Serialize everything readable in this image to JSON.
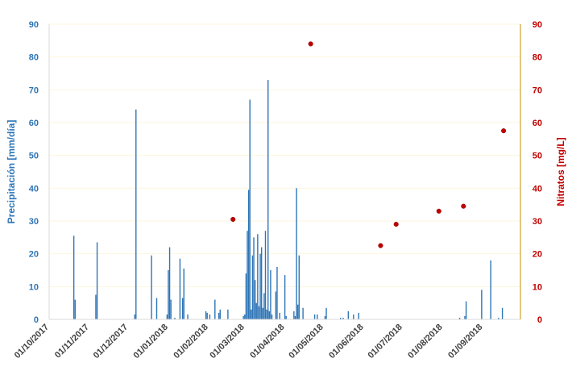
{
  "chart_data": {
    "type": "bar",
    "title": "",
    "xlabel": "",
    "ylabel_left": "Precipitación [mm/día]",
    "ylabel_right": "Nitratos [mg/L]",
    "ylim_left": [
      0,
      90
    ],
    "ylim_right": [
      0,
      90
    ],
    "y_ticks": [
      "0",
      "10",
      "20",
      "30",
      "40",
      "50",
      "60",
      "70",
      "80",
      "90"
    ],
    "x_range": [
      "2017-10-01",
      "2018-09-30"
    ],
    "x_tick_labels": [
      "01/10/2017",
      "01/11/2017",
      "01/12/2017",
      "01/01/2018",
      "01/02/2018",
      "01/03/2018",
      "01/04/2018",
      "01/05/2018",
      "01/06/2018",
      "01/07/2018",
      "01/08/2018",
      "01/09/2018"
    ],
    "x_tick_dates": [
      "2017-10-01",
      "2017-11-01",
      "2017-12-01",
      "2018-01-01",
      "2018-02-01",
      "2018-03-01",
      "2018-04-01",
      "2018-05-01",
      "2018-06-01",
      "2018-07-01",
      "2018-08-01",
      "2018-09-01"
    ],
    "grid": "horizontal",
    "colors": {
      "bars": "#2e75b6",
      "points": "#c00000",
      "axis_left": "#2e75b6",
      "axis_right": "#c00000",
      "grid": "#fdf6dc"
    },
    "series": [
      {
        "axis": "left",
        "type": "bar",
        "points": [
          {
            "x": "2017-10-20",
            "y": 25.5
          },
          {
            "x": "2017-10-21",
            "y": 6
          },
          {
            "x": "2017-11-06",
            "y": 7.5
          },
          {
            "x": "2017-11-07",
            "y": 23.5
          },
          {
            "x": "2017-12-06",
            "y": 1.5
          },
          {
            "x": "2017-12-07",
            "y": 64
          },
          {
            "x": "2017-12-19",
            "y": 19.5
          },
          {
            "x": "2017-12-23",
            "y": 6.5
          },
          {
            "x": "2017-12-31",
            "y": 1.5
          },
          {
            "x": "2018-01-01",
            "y": 15
          },
          {
            "x": "2018-01-02",
            "y": 22
          },
          {
            "x": "2018-01-03",
            "y": 6
          },
          {
            "x": "2018-01-06",
            "y": 0.5
          },
          {
            "x": "2018-01-10",
            "y": 18.5
          },
          {
            "x": "2018-01-12",
            "y": 6.5
          },
          {
            "x": "2018-01-13",
            "y": 15.5
          },
          {
            "x": "2018-01-16",
            "y": 1.5
          },
          {
            "x": "2018-01-30",
            "y": 2.5
          },
          {
            "x": "2018-01-31",
            "y": 2
          },
          {
            "x": "2018-02-02",
            "y": 1.5
          },
          {
            "x": "2018-02-06",
            "y": 6
          },
          {
            "x": "2018-02-09",
            "y": 2
          },
          {
            "x": "2018-02-10",
            "y": 3
          },
          {
            "x": "2018-02-16",
            "y": 3
          },
          {
            "x": "2018-02-28",
            "y": 1
          },
          {
            "x": "2018-03-01",
            "y": 1.5
          },
          {
            "x": "2018-03-02",
            "y": 14
          },
          {
            "x": "2018-03-03",
            "y": 27
          },
          {
            "x": "2018-03-04",
            "y": 39.5
          },
          {
            "x": "2018-03-05",
            "y": 67
          },
          {
            "x": "2018-03-06",
            "y": 3
          },
          {
            "x": "2018-03-07",
            "y": 19.5
          },
          {
            "x": "2018-03-08",
            "y": 25
          },
          {
            "x": "2018-03-09",
            "y": 12
          },
          {
            "x": "2018-03-10",
            "y": 5
          },
          {
            "x": "2018-03-11",
            "y": 26
          },
          {
            "x": "2018-03-12",
            "y": 4
          },
          {
            "x": "2018-03-13",
            "y": 20
          },
          {
            "x": "2018-03-14",
            "y": 22
          },
          {
            "x": "2018-03-15",
            "y": 3.5
          },
          {
            "x": "2018-03-16",
            "y": 8
          },
          {
            "x": "2018-03-17",
            "y": 27
          },
          {
            "x": "2018-03-18",
            "y": 3
          },
          {
            "x": "2018-03-19",
            "y": 73
          },
          {
            "x": "2018-03-20",
            "y": 2.5
          },
          {
            "x": "2018-03-21",
            "y": 15
          },
          {
            "x": "2018-03-22",
            "y": 1.5
          },
          {
            "x": "2018-03-25",
            "y": 8.5
          },
          {
            "x": "2018-03-26",
            "y": 16
          },
          {
            "x": "2018-03-28",
            "y": 2
          },
          {
            "x": "2018-04-01",
            "y": 13.5
          },
          {
            "x": "2018-04-02",
            "y": 1
          },
          {
            "x": "2018-04-08",
            "y": 2.5
          },
          {
            "x": "2018-04-09",
            "y": 1
          },
          {
            "x": "2018-04-10",
            "y": 40
          },
          {
            "x": "2018-04-11",
            "y": 4.5
          },
          {
            "x": "2018-04-12",
            "y": 19.5
          },
          {
            "x": "2018-04-15",
            "y": 3.5
          },
          {
            "x": "2018-04-24",
            "y": 1.5
          },
          {
            "x": "2018-04-26",
            "y": 1.5
          },
          {
            "x": "2018-05-02",
            "y": 1
          },
          {
            "x": "2018-05-03",
            "y": 3.5
          },
          {
            "x": "2018-05-14",
            "y": 0.5
          },
          {
            "x": "2018-05-16",
            "y": 0.5
          },
          {
            "x": "2018-05-20",
            "y": 2.5
          },
          {
            "x": "2018-05-24",
            "y": 1.5
          },
          {
            "x": "2018-05-28",
            "y": 2
          },
          {
            "x": "2018-08-14",
            "y": 0.5
          },
          {
            "x": "2018-08-18",
            "y": 1
          },
          {
            "x": "2018-08-19",
            "y": 5.5
          },
          {
            "x": "2018-08-31",
            "y": 9
          },
          {
            "x": "2018-09-07",
            "y": 18
          },
          {
            "x": "2018-09-13",
            "y": 0.5
          },
          {
            "x": "2018-09-16",
            "y": 3.5
          }
        ]
      },
      {
        "axis": "right",
        "type": "scatter",
        "points": [
          {
            "x": "2018-02-20",
            "y": 30.5
          },
          {
            "x": "2018-04-21",
            "y": 84
          },
          {
            "x": "2018-06-14",
            "y": 22.5
          },
          {
            "x": "2018-06-26",
            "y": 29
          },
          {
            "x": "2018-07-29",
            "y": 33
          },
          {
            "x": "2018-08-17",
            "y": 34.5
          },
          {
            "x": "2018-09-17",
            "y": 57.5
          }
        ]
      }
    ]
  }
}
